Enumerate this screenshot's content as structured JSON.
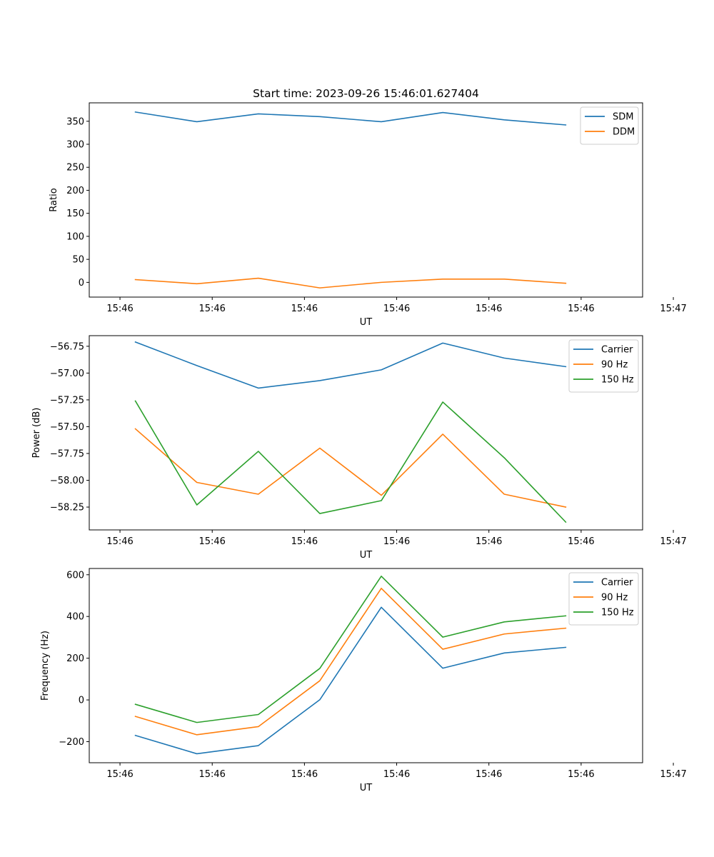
{
  "figure_title": "Start time: 2023-09-26 15:46:01.627404",
  "chart_data": [
    {
      "type": "line",
      "title": "Start time: 2023-09-26 15:46:01.627404",
      "xlabel": "UT",
      "ylabel": "Ratio",
      "xlim": [
        -0.5,
        8.5
      ],
      "x": [
        0.25,
        1.25,
        2.25,
        3.25,
        4.25,
        5.25,
        6.25,
        7.25
      ],
      "xticks": [
        0,
        1.5,
        3,
        4.5,
        6,
        7.5,
        9
      ],
      "xtick_labels": [
        "15:46",
        "15:46",
        "15:46",
        "15:46",
        "15:46",
        "15:46",
        "15:47"
      ],
      "ylim": [
        -32,
        390
      ],
      "yticks": [
        0,
        50,
        100,
        150,
        200,
        250,
        300,
        350
      ],
      "ytick_labels": [
        "0",
        "50",
        "100",
        "150",
        "200",
        "250",
        "300",
        "350"
      ],
      "legend_position": "top-right",
      "series": [
        {
          "name": "SDM",
          "color": "#1f77b4",
          "values": [
            370,
            349,
            366,
            360,
            349,
            369,
            353,
            342
          ]
        },
        {
          "name": "DDM",
          "color": "#ff7f0e",
          "values": [
            6,
            -3,
            9,
            -12,
            0,
            7,
            7,
            -2
          ]
        }
      ]
    },
    {
      "type": "line",
      "title": "",
      "xlabel": "UT",
      "ylabel": "Power (dB)",
      "xlim": [
        -0.5,
        8.5
      ],
      "x": [
        0.25,
        1.25,
        2.25,
        3.25,
        4.25,
        5.25,
        6.25,
        7.25
      ],
      "xticks": [
        0,
        1.5,
        3,
        4.5,
        6,
        7.5,
        9
      ],
      "xtick_labels": [
        "15:46",
        "15:46",
        "15:46",
        "15:46",
        "15:46",
        "15:46",
        "15:47"
      ],
      "ylim": [
        -58.463,
        -56.651
      ],
      "yticks": [
        -58.25,
        -58.0,
        -57.75,
        -57.5,
        -57.25,
        -57.0,
        -56.75
      ],
      "ytick_labels": [
        "−58.25",
        "−58.00",
        "−57.75",
        "−57.50",
        "−57.25",
        "−57.00",
        "−56.75"
      ],
      "legend_position": "top-right",
      "series": [
        {
          "name": "Carrier",
          "color": "#1f77b4",
          "values": [
            -56.71,
            -56.93,
            -57.14,
            -57.07,
            -56.97,
            -56.72,
            -56.86,
            -56.94
          ]
        },
        {
          "name": "90 Hz",
          "color": "#ff7f0e",
          "values": [
            -57.52,
            -58.02,
            -58.13,
            -57.7,
            -58.14,
            -57.57,
            -58.13,
            -58.25
          ]
        },
        {
          "name": "150 Hz",
          "color": "#2ca02c",
          "values": [
            -57.26,
            -58.23,
            -57.73,
            -58.31,
            -58.19,
            -57.27,
            -57.79,
            -58.39
          ]
        }
      ]
    },
    {
      "type": "line",
      "title": "",
      "xlabel": "UT",
      "ylabel": "Frequency (Hz)",
      "xlim": [
        -0.5,
        8.5
      ],
      "x": [
        0.25,
        1.25,
        2.25,
        3.25,
        4.25,
        5.25,
        6.25,
        7.25
      ],
      "xticks": [
        0,
        1.5,
        3,
        4.5,
        6,
        7.5,
        9
      ],
      "xtick_labels": [
        "15:46",
        "15:46",
        "15:46",
        "15:46",
        "15:46",
        "15:46",
        "15:47"
      ],
      "ylim": [
        -301,
        630
      ],
      "yticks": [
        -200,
        0,
        200,
        400,
        600
      ],
      "ytick_labels": [
        "−200",
        "0",
        "200",
        "400",
        "600"
      ],
      "legend_position": "top-right",
      "series": [
        {
          "name": "Carrier",
          "color": "#1f77b4",
          "values": [
            -170,
            -258,
            -219,
            1,
            444,
            152,
            225,
            252
          ]
        },
        {
          "name": "90 Hz",
          "color": "#ff7f0e",
          "values": [
            -79,
            -167,
            -128,
            92,
            535,
            243,
            316,
            344
          ]
        },
        {
          "name": "150 Hz",
          "color": "#2ca02c",
          "values": [
            -21,
            -108,
            -70,
            151,
            593,
            301,
            374,
            403
          ]
        }
      ]
    }
  ]
}
